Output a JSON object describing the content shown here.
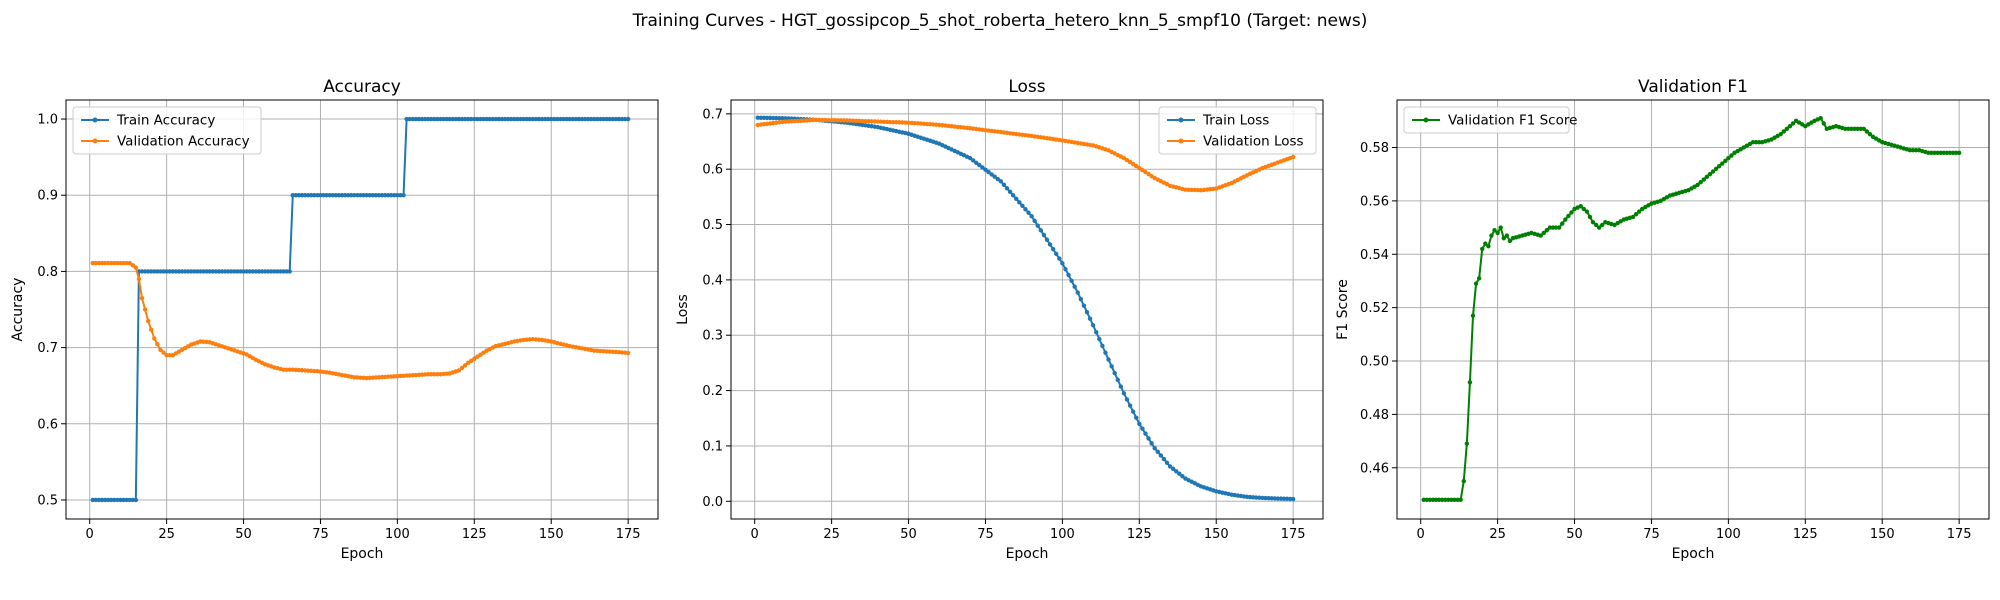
{
  "figure": {
    "suptitle": "Training Curves - HGT_gossipcop_5_shot_roberta_hetero_knn_5_smpf10 (Target: news)"
  },
  "colors": {
    "blue": "#1f77b4",
    "orange": "#ff7f0e",
    "green": "#008000",
    "grid": "#b0b0b0"
  },
  "chart_data": [
    {
      "type": "line",
      "title": "Accuracy",
      "xlabel": "Epoch",
      "ylabel": "Accuracy",
      "xlim": [
        -7.7,
        184.7
      ],
      "ylim": [
        0.475,
        1.025
      ],
      "xticks": [
        0,
        25,
        50,
        75,
        100,
        125,
        150,
        175
      ],
      "yticks": [
        0.5,
        0.6,
        0.7,
        0.8,
        0.9,
        1.0
      ],
      "ytick_labels": [
        "0.5",
        "0.6",
        "0.7",
        "0.8",
        "0.9",
        "1.0"
      ],
      "grid": true,
      "legend": "top-left",
      "series": [
        {
          "name": "Train Accuracy",
          "color": "#1f77b4",
          "x_start": 1,
          "x_end": 175,
          "points": [
            [
              1,
              0.5
            ],
            [
              15,
              0.5
            ],
            [
              16,
              0.8
            ],
            [
              65,
              0.8
            ],
            [
              66,
              0.9
            ],
            [
              102,
              0.9
            ],
            [
              103,
              1.0
            ],
            [
              175,
              1.0
            ]
          ]
        },
        {
          "name": "Validation Accuracy",
          "color": "#ff7f0e",
          "x_start": 1,
          "x_end": 175,
          "points": [
            [
              1,
              0.811
            ],
            [
              13,
              0.811
            ],
            [
              15,
              0.805
            ],
            [
              16,
              0.79
            ],
            [
              17,
              0.765
            ],
            [
              19,
              0.735
            ],
            [
              21,
              0.712
            ],
            [
              23,
              0.697
            ],
            [
              25,
              0.69
            ],
            [
              27,
              0.69
            ],
            [
              30,
              0.697
            ],
            [
              33,
              0.704
            ],
            [
              36,
              0.708
            ],
            [
              39,
              0.707
            ],
            [
              42,
              0.703
            ],
            [
              45,
              0.699
            ],
            [
              48,
              0.695
            ],
            [
              51,
              0.691
            ],
            [
              54,
              0.684
            ],
            [
              57,
              0.678
            ],
            [
              60,
              0.674
            ],
            [
              63,
              0.671
            ],
            [
              66,
              0.671
            ],
            [
              70,
              0.67
            ],
            [
              74,
              0.669
            ],
            [
              78,
              0.667
            ],
            [
              82,
              0.664
            ],
            [
              86,
              0.661
            ],
            [
              90,
              0.66
            ],
            [
              94,
              0.661
            ],
            [
              98,
              0.662
            ],
            [
              102,
              0.663
            ],
            [
              106,
              0.664
            ],
            [
              110,
              0.665
            ],
            [
              114,
              0.665
            ],
            [
              117,
              0.666
            ],
            [
              120,
              0.67
            ],
            [
              123,
              0.68
            ],
            [
              126,
              0.688
            ],
            [
              129,
              0.696
            ],
            [
              132,
              0.702
            ],
            [
              135,
              0.705
            ],
            [
              138,
              0.708
            ],
            [
              141,
              0.71
            ],
            [
              144,
              0.711
            ],
            [
              147,
              0.71
            ],
            [
              150,
              0.708
            ],
            [
              153,
              0.705
            ],
            [
              156,
              0.702
            ],
            [
              160,
              0.699
            ],
            [
              164,
              0.696
            ],
            [
              168,
              0.695
            ],
            [
              172,
              0.694
            ],
            [
              175,
              0.693
            ]
          ]
        }
      ]
    },
    {
      "type": "line",
      "title": "Loss",
      "xlabel": "Epoch",
      "ylabel": "Loss",
      "xlim": [
        -7.7,
        184.7
      ],
      "ylim": [
        -0.032,
        0.725
      ],
      "xticks": [
        0,
        25,
        50,
        75,
        100,
        125,
        150,
        175
      ],
      "yticks": [
        0.0,
        0.1,
        0.2,
        0.3,
        0.4,
        0.5,
        0.6,
        0.7
      ],
      "ytick_labels": [
        "0.0",
        "0.1",
        "0.2",
        "0.3",
        "0.4",
        "0.5",
        "0.6",
        "0.7"
      ],
      "grid": true,
      "legend": "top-right",
      "series": [
        {
          "name": "Train Loss",
          "color": "#1f77b4",
          "x_start": 1,
          "x_end": 175,
          "points": [
            [
              1,
              0.693
            ],
            [
              10,
              0.692
            ],
            [
              20,
              0.689
            ],
            [
              30,
              0.684
            ],
            [
              40,
              0.676
            ],
            [
              50,
              0.664
            ],
            [
              60,
              0.646
            ],
            [
              70,
              0.62
            ],
            [
              80,
              0.578
            ],
            [
              90,
              0.515
            ],
            [
              100,
              0.43
            ],
            [
              105,
              0.377
            ],
            [
              110,
              0.318
            ],
            [
              115,
              0.256
            ],
            [
              120,
              0.195
            ],
            [
              125,
              0.14
            ],
            [
              130,
              0.096
            ],
            [
              135,
              0.063
            ],
            [
              140,
              0.041
            ],
            [
              145,
              0.027
            ],
            [
              150,
              0.018
            ],
            [
              155,
              0.012
            ],
            [
              160,
              0.008
            ],
            [
              165,
              0.006
            ],
            [
              170,
              0.005
            ],
            [
              175,
              0.004
            ]
          ]
        },
        {
          "name": "Validation Loss",
          "color": "#ff7f0e",
          "x_start": 1,
          "x_end": 175,
          "points": [
            [
              1,
              0.68
            ],
            [
              10,
              0.686
            ],
            [
              20,
              0.689
            ],
            [
              30,
              0.688
            ],
            [
              40,
              0.686
            ],
            [
              50,
              0.684
            ],
            [
              60,
              0.68
            ],
            [
              70,
              0.674
            ],
            [
              80,
              0.667
            ],
            [
              90,
              0.66
            ],
            [
              100,
              0.652
            ],
            [
              110,
              0.643
            ],
            [
              115,
              0.634
            ],
            [
              120,
              0.62
            ],
            [
              125,
              0.602
            ],
            [
              130,
              0.584
            ],
            [
              135,
              0.57
            ],
            [
              140,
              0.563
            ],
            [
              145,
              0.562
            ],
            [
              150,
              0.565
            ],
            [
              155,
              0.575
            ],
            [
              160,
              0.589
            ],
            [
              165,
              0.602
            ],
            [
              170,
              0.612
            ],
            [
              175,
              0.622
            ]
          ]
        }
      ]
    },
    {
      "type": "line",
      "title": "Validation F1",
      "xlabel": "Epoch",
      "ylabel": "F1 Score",
      "xlim": [
        -7.7,
        184.7
      ],
      "ylim": [
        0.4408,
        0.5978
      ],
      "xticks": [
        0,
        25,
        50,
        75,
        100,
        125,
        150,
        175
      ],
      "yticks": [
        0.46,
        0.48,
        0.5,
        0.52,
        0.54,
        0.56,
        0.58
      ],
      "ytick_labels": [
        "0.46",
        "0.48",
        "0.50",
        "0.52",
        "0.54",
        "0.56",
        "0.58"
      ],
      "grid": true,
      "legend": "top-left",
      "series": [
        {
          "name": "Validation F1 Score",
          "color": "#008000",
          "x_start": 1,
          "x_end": 175,
          "points": [
            [
              1,
              0.448
            ],
            [
              13,
              0.448
            ],
            [
              14,
              0.455
            ],
            [
              15,
              0.469
            ],
            [
              16,
              0.492
            ],
            [
              17,
              0.517
            ],
            [
              18,
              0.529
            ],
            [
              19,
              0.531
            ],
            [
              20,
              0.542
            ],
            [
              21,
              0.544
            ],
            [
              22,
              0.543
            ],
            [
              23,
              0.547
            ],
            [
              24,
              0.549
            ],
            [
              25,
              0.548
            ],
            [
              26,
              0.55
            ],
            [
              27,
              0.546
            ],
            [
              28,
              0.547
            ],
            [
              29,
              0.545
            ],
            [
              30,
              0.546
            ],
            [
              33,
              0.547
            ],
            [
              36,
              0.548
            ],
            [
              39,
              0.547
            ],
            [
              42,
              0.55
            ],
            [
              45,
              0.55
            ],
            [
              47,
              0.553
            ],
            [
              50,
              0.557
            ],
            [
              52,
              0.558
            ],
            [
              54,
              0.556
            ],
            [
              56,
              0.552
            ],
            [
              58,
              0.55
            ],
            [
              60,
              0.552
            ],
            [
              63,
              0.551
            ],
            [
              66,
              0.553
            ],
            [
              69,
              0.554
            ],
            [
              72,
              0.557
            ],
            [
              75,
              0.559
            ],
            [
              78,
              0.56
            ],
            [
              81,
              0.562
            ],
            [
              84,
              0.563
            ],
            [
              87,
              0.564
            ],
            [
              90,
              0.566
            ],
            [
              93,
              0.569
            ],
            [
              96,
              0.572
            ],
            [
              99,
              0.575
            ],
            [
              102,
              0.578
            ],
            [
              105,
              0.58
            ],
            [
              108,
              0.582
            ],
            [
              111,
              0.582
            ],
            [
              114,
              0.583
            ],
            [
              117,
              0.585
            ],
            [
              120,
              0.588
            ],
            [
              122,
              0.59
            ],
            [
              125,
              0.588
            ],
            [
              128,
              0.59
            ],
            [
              130,
              0.591
            ],
            [
              132,
              0.587
            ],
            [
              135,
              0.588
            ],
            [
              138,
              0.587
            ],
            [
              141,
              0.587
            ],
            [
              144,
              0.587
            ],
            [
              147,
              0.584
            ],
            [
              150,
              0.582
            ],
            [
              153,
              0.581
            ],
            [
              156,
              0.58
            ],
            [
              159,
              0.579
            ],
            [
              162,
              0.579
            ],
            [
              165,
              0.578
            ],
            [
              168,
              0.578
            ],
            [
              171,
              0.578
            ],
            [
              175,
              0.578
            ]
          ]
        }
      ]
    }
  ]
}
